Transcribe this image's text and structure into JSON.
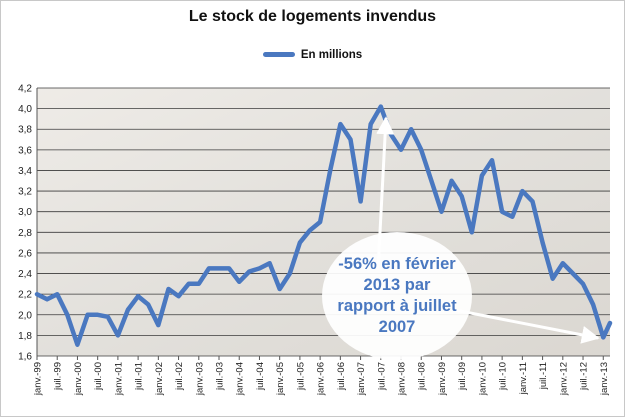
{
  "chart_data": {
    "type": "line",
    "title": "Le stock de logements invendus",
    "legend": {
      "label": "En millions",
      "placement": "top-center"
    },
    "line_color": "#4a78c0",
    "ylim": [
      1.6,
      4.2
    ],
    "yticks": [
      "1,6",
      "1,8",
      "2,0",
      "2,2",
      "2,4",
      "2,6",
      "2,8",
      "3,0",
      "3,2",
      "3,4",
      "3,6",
      "3,8",
      "4,0",
      "4,2"
    ],
    "grid": "horizontal",
    "xlim": [
      "1999-01",
      "2013-03"
    ],
    "xticks": [
      "janv.-99",
      "juil.-99",
      "janv.-00",
      "juil.-00",
      "janv.-01",
      "juil.-01",
      "janv.-02",
      "juil.-02",
      "janv.-03",
      "juil.-03",
      "janv.-04",
      "juil.-04",
      "janv.-05",
      "juil.-05",
      "janv.-06",
      "juil.-06",
      "janv.-07",
      "juil.-07",
      "janv.-08",
      "juil.-08",
      "janv.-09",
      "juil.-09",
      "janv.-10",
      "juil.-10",
      "janv.-11",
      "juil.-11",
      "janv.-12",
      "juil.-12",
      "janv.-13"
    ],
    "series": [
      {
        "name": "En millions",
        "points": [
          [
            "1999-01",
            2.2
          ],
          [
            "1999-04",
            2.15
          ],
          [
            "1999-07",
            2.2
          ],
          [
            "1999-10",
            2.0
          ],
          [
            "2000-01",
            1.71
          ],
          [
            "2000-04",
            2.0
          ],
          [
            "2000-07",
            2.0
          ],
          [
            "2000-10",
            1.98
          ],
          [
            "2001-01",
            1.8
          ],
          [
            "2001-04",
            2.05
          ],
          [
            "2001-07",
            2.18
          ],
          [
            "2001-10",
            2.1
          ],
          [
            "2002-01",
            1.9
          ],
          [
            "2002-04",
            2.25
          ],
          [
            "2002-07",
            2.18
          ],
          [
            "2002-10",
            2.3
          ],
          [
            "2003-01",
            2.3
          ],
          [
            "2003-04",
            2.45
          ],
          [
            "2003-07",
            2.45
          ],
          [
            "2003-10",
            2.45
          ],
          [
            "2004-01",
            2.32
          ],
          [
            "2004-04",
            2.42
          ],
          [
            "2004-07",
            2.45
          ],
          [
            "2004-10",
            2.5
          ],
          [
            "2005-01",
            2.25
          ],
          [
            "2005-04",
            2.4
          ],
          [
            "2005-07",
            2.7
          ],
          [
            "2005-10",
            2.82
          ],
          [
            "2006-01",
            2.9
          ],
          [
            "2006-04",
            3.4
          ],
          [
            "2006-07",
            3.85
          ],
          [
            "2006-10",
            3.7
          ],
          [
            "2007-01",
            3.1
          ],
          [
            "2007-04",
            3.85
          ],
          [
            "2007-07",
            4.02
          ],
          [
            "2007-10",
            3.75
          ],
          [
            "2008-01",
            3.6
          ],
          [
            "2008-04",
            3.8
          ],
          [
            "2008-07",
            3.6
          ],
          [
            "2008-10",
            3.3
          ],
          [
            "2009-01",
            3.0
          ],
          [
            "2009-04",
            3.3
          ],
          [
            "2009-07",
            3.15
          ],
          [
            "2009-10",
            2.8
          ],
          [
            "2010-01",
            3.35
          ],
          [
            "2010-04",
            3.5
          ],
          [
            "2010-07",
            3.0
          ],
          [
            "2010-10",
            2.95
          ],
          [
            "2011-01",
            3.2
          ],
          [
            "2011-04",
            3.1
          ],
          [
            "2011-07",
            2.7
          ],
          [
            "2011-10",
            2.35
          ],
          [
            "2012-01",
            2.5
          ],
          [
            "2012-04",
            2.4
          ],
          [
            "2012-07",
            2.3
          ],
          [
            "2012-10",
            2.1
          ],
          [
            "2013-01",
            1.78
          ],
          [
            "2013-03",
            1.92
          ]
        ]
      }
    ],
    "annotation": "-56% en février\n2013 par\nrapport à juillet\n2007"
  }
}
